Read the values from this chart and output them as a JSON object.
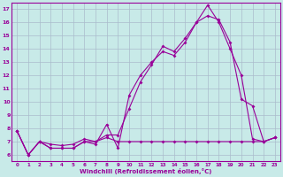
{
  "xlabel": "Windchill (Refroidissement éolien,°C)",
  "background_color": "#c8eae8",
  "line_color": "#990099",
  "grid_color": "#aabbcc",
  "xlim": [
    -0.5,
    23.5
  ],
  "ylim": [
    5.5,
    17.5
  ],
  "xticks": [
    0,
    1,
    2,
    3,
    4,
    5,
    6,
    7,
    8,
    9,
    10,
    11,
    12,
    13,
    14,
    15,
    16,
    17,
    18,
    19,
    20,
    21,
    22,
    23
  ],
  "yticks": [
    6,
    7,
    8,
    9,
    10,
    11,
    12,
    13,
    14,
    15,
    16,
    17
  ],
  "series1_x": [
    0,
    1,
    2,
    3,
    4,
    5,
    6,
    7,
    8,
    9,
    10,
    11,
    12,
    13,
    14,
    15,
    16,
    17,
    18,
    19,
    20,
    21,
    22,
    23
  ],
  "series1_y": [
    7.8,
    6.0,
    7.0,
    6.5,
    6.5,
    6.5,
    7.0,
    6.8,
    8.3,
    6.5,
    10.5,
    12.0,
    13.0,
    13.8,
    13.5,
    14.5,
    16.0,
    17.3,
    16.0,
    14.0,
    12.0,
    7.2,
    7.0,
    7.3
  ],
  "series2_x": [
    0,
    1,
    2,
    3,
    4,
    5,
    6,
    7,
    8,
    9,
    10,
    11,
    12,
    13,
    14,
    15,
    16,
    17,
    18,
    19,
    20,
    21,
    22,
    23
  ],
  "series2_y": [
    7.8,
    6.0,
    7.0,
    6.5,
    6.5,
    6.5,
    7.0,
    7.0,
    7.5,
    7.5,
    9.5,
    11.5,
    12.8,
    14.2,
    13.8,
    14.8,
    16.0,
    16.5,
    16.2,
    14.5,
    10.2,
    9.7,
    7.0,
    7.3
  ],
  "series3_x": [
    0,
    1,
    2,
    3,
    4,
    5,
    6,
    7,
    8,
    9,
    10,
    11,
    12,
    13,
    14,
    15,
    16,
    17,
    18,
    19,
    20,
    21,
    22,
    23
  ],
  "series3_y": [
    7.8,
    6.0,
    7.0,
    6.8,
    6.7,
    6.8,
    7.2,
    7.0,
    7.3,
    7.0,
    7.0,
    7.0,
    7.0,
    7.0,
    7.0,
    7.0,
    7.0,
    7.0,
    7.0,
    7.0,
    7.0,
    7.0,
    7.0,
    7.3
  ]
}
